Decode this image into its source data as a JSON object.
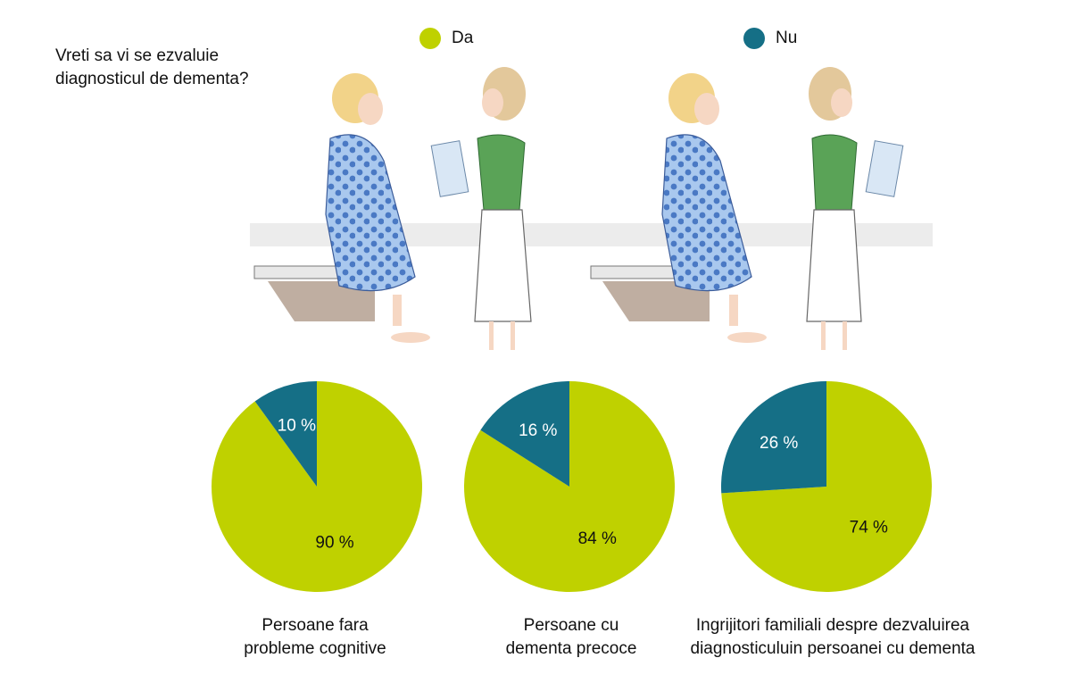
{
  "question": "Vreti sa vi se ezvaluie\ndiagnosticul de dementa?",
  "legend": [
    {
      "label": "Da",
      "color": "#bfd100"
    },
    {
      "label": "Nu",
      "color": "#156f86"
    }
  ],
  "chart_data": [
    {
      "type": "pie",
      "categories": [
        "Da",
        "Nu"
      ],
      "values": [
        90,
        10
      ],
      "labels": [
        "90 %",
        "10 %"
      ],
      "colors": [
        "#bfd100",
        "#156f86"
      ],
      "caption": "Persoane fara\nprobleme cognitive"
    },
    {
      "type": "pie",
      "categories": [
        "Da",
        "Nu"
      ],
      "values": [
        84,
        16
      ],
      "labels": [
        "84 %",
        "16 %"
      ],
      "colors": [
        "#bfd100",
        "#156f86"
      ],
      "caption": "Persoane cu\ndementa precoce"
    },
    {
      "type": "pie",
      "categories": [
        "Da",
        "Nu"
      ],
      "values": [
        74,
        26
      ],
      "labels": [
        "74 %",
        "26 %"
      ],
      "colors": [
        "#bfd100",
        "#156f86"
      ],
      "caption": "Ingrijitori familiali despre dezvaluirea\ndiagnosticuluin persoanei cu dementa"
    }
  ]
}
